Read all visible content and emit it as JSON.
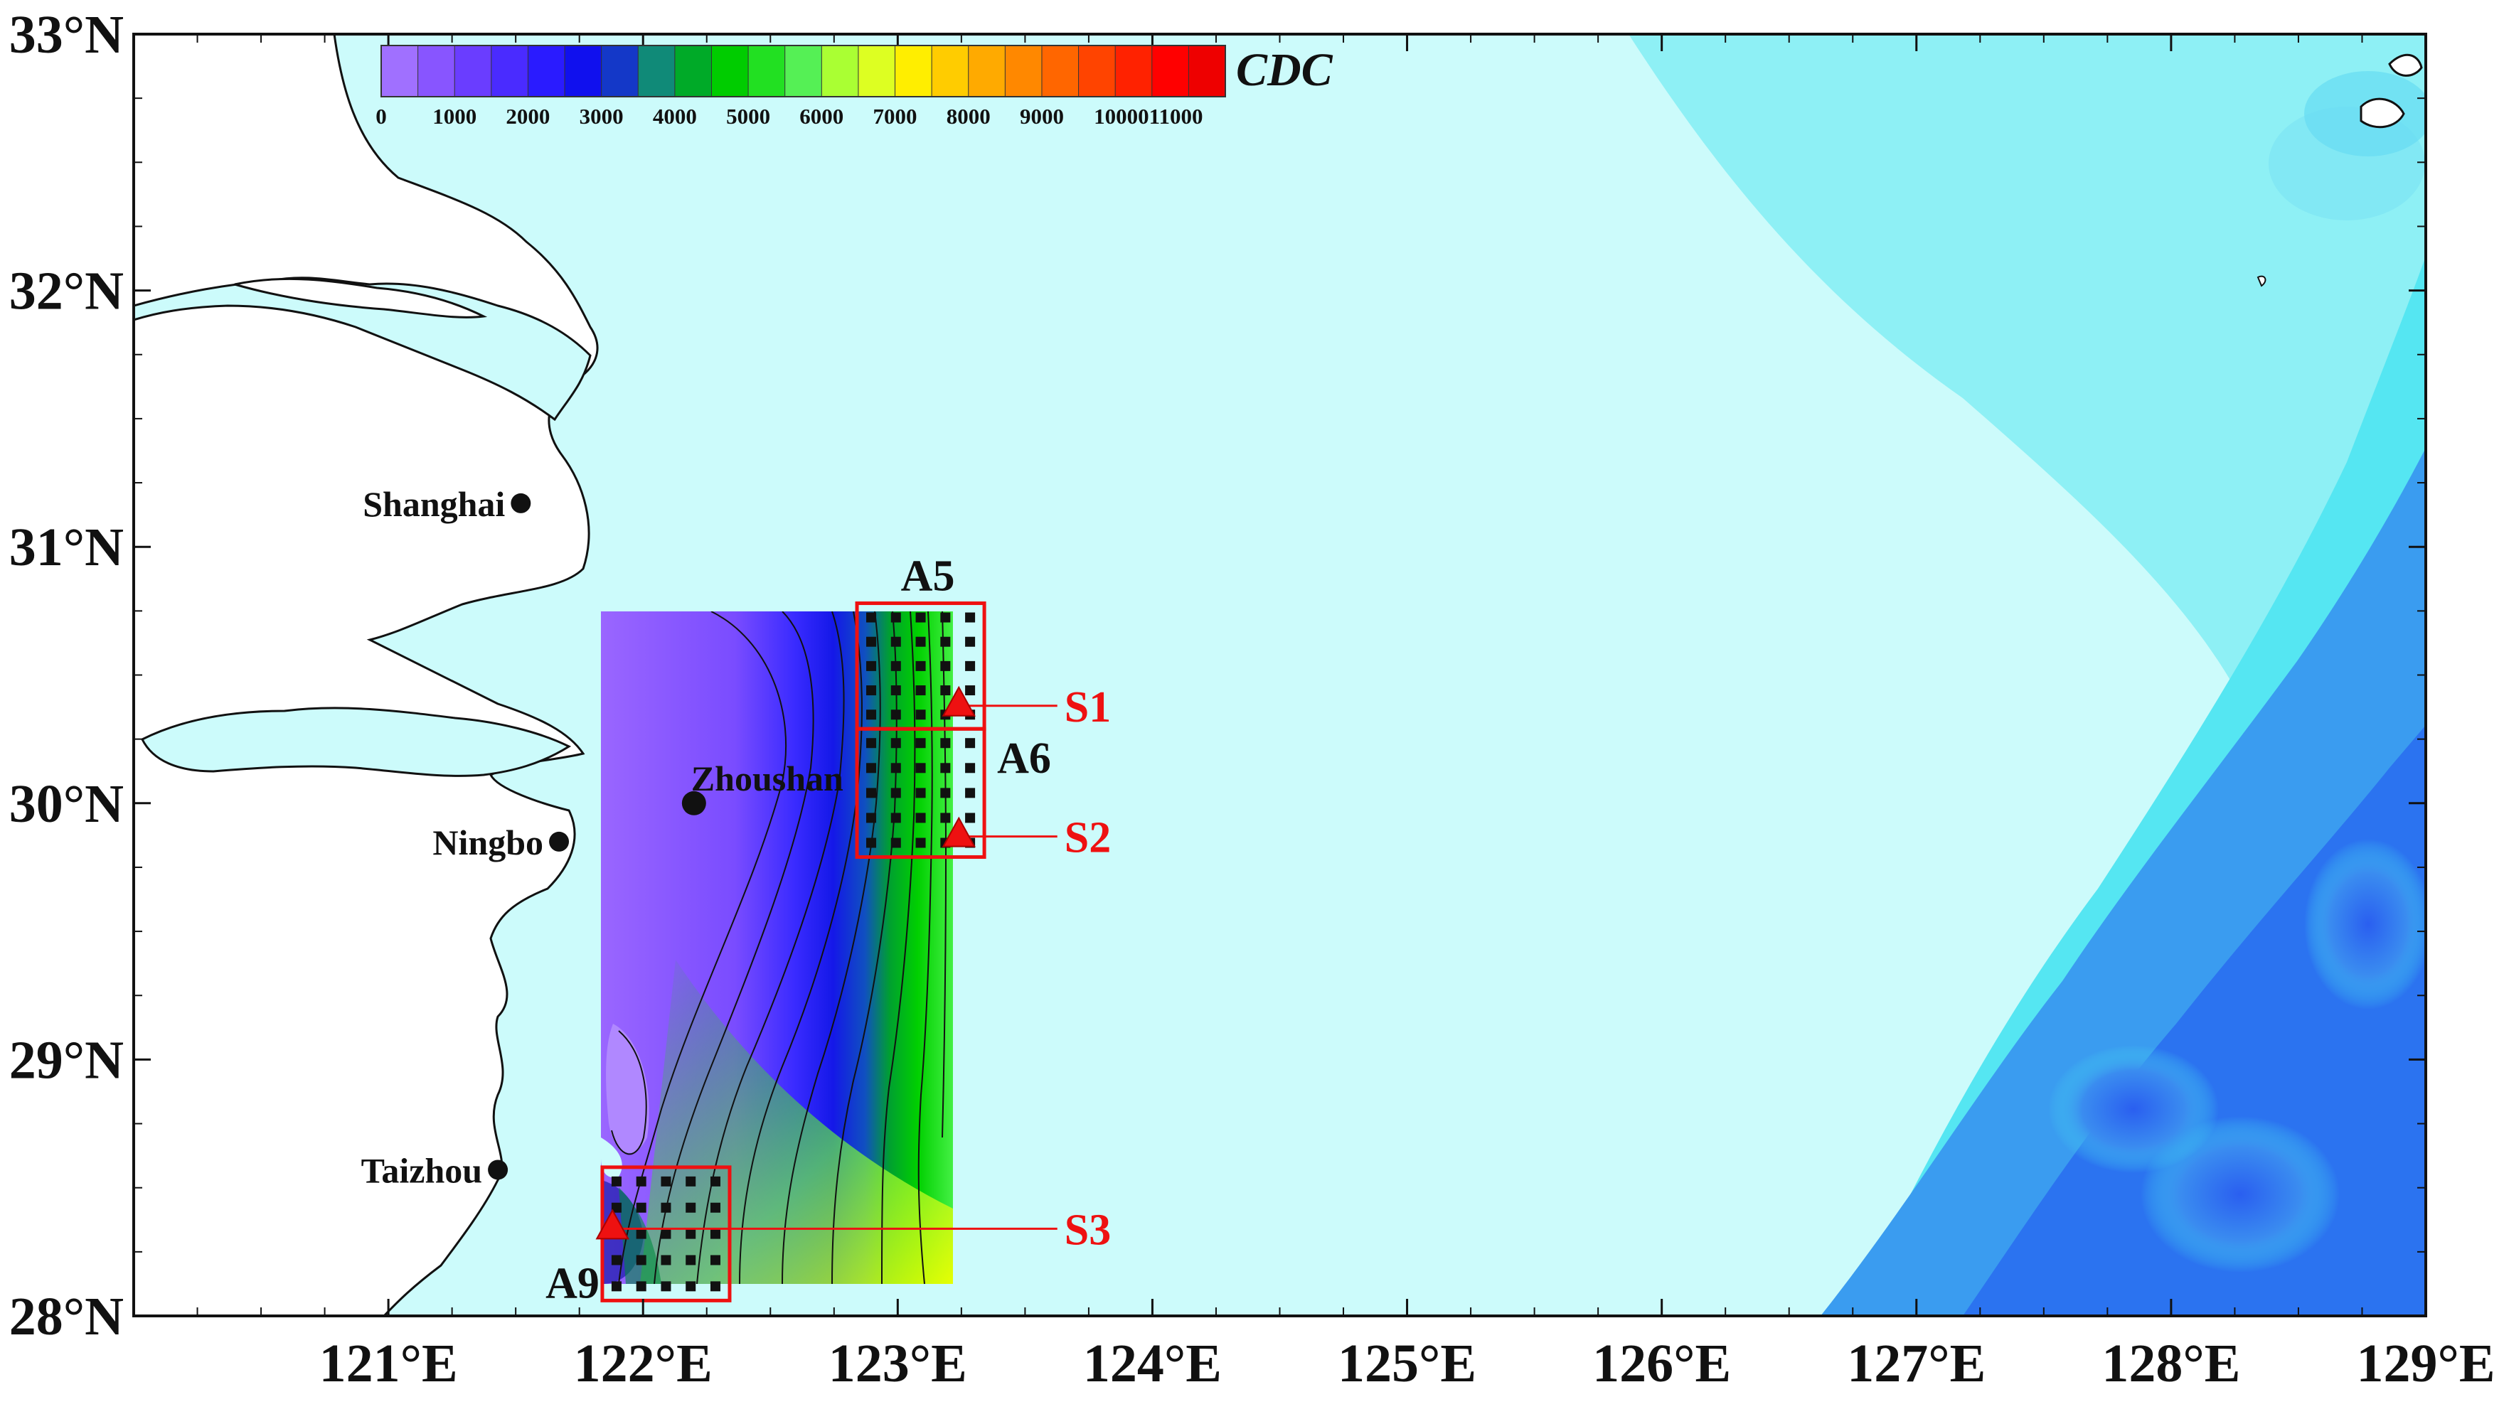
{
  "map": {
    "lon_range": [
      120,
      129
    ],
    "lat_range": [
      28,
      33
    ],
    "lon_ticks": [
      "121°E",
      "122°E",
      "123°E",
      "124°E",
      "125°E",
      "126°E",
      "127°E",
      "128°E",
      "129°E"
    ],
    "lat_ticks": [
      "28°N",
      "29°N",
      "30°N",
      "31°N",
      "32°N",
      "33°N"
    ],
    "colors": {
      "sea_base": "#ccfbfb",
      "sea_mid": "#44dff0",
      "sea_deep": "#2266f0",
      "land": "#ffffff",
      "coastline": "#111111",
      "marker_box": "#ee1111",
      "station": "#ee1111"
    }
  },
  "colorbar": {
    "title": "CDC",
    "tick_labels": [
      "0",
      "1000",
      "2000",
      "3000",
      "4000",
      "5000",
      "6000",
      "7000",
      "8000",
      "9000",
      "1000011000"
    ],
    "colors": [
      "#a070ff",
      "#8855ff",
      "#6a3dff",
      "#4a2bff",
      "#2a1bff",
      "#1010ee",
      "#1438c8",
      "#108a78",
      "#00aa28",
      "#00cc00",
      "#22e022",
      "#55f055",
      "#aaff33",
      "#ddff22",
      "#ffee00",
      "#ffcc00",
      "#ffaa00",
      "#ff8800",
      "#ff6600",
      "#ff4400",
      "#ff2200",
      "#ff0000",
      "#ee0000"
    ]
  },
  "cities": [
    {
      "name": "Shanghai",
      "lon": 121.52,
      "lat": 31.17
    },
    {
      "name": "Zhoushan",
      "lon": 122.2,
      "lat": 30.0
    },
    {
      "name": "Ningbo",
      "lon": 121.67,
      "lat": 29.85
    },
    {
      "name": "Taizhou",
      "lon": 121.43,
      "lat": 28.57
    }
  ],
  "areas": [
    {
      "label": "A5",
      "lon_range": [
        122.84,
        123.34
      ],
      "lat_range": [
        30.29,
        30.78
      ]
    },
    {
      "label": "A6",
      "lon_range": [
        122.84,
        123.34
      ],
      "lat_range": [
        29.79,
        30.29
      ]
    },
    {
      "label": "A9",
      "lon_range": [
        121.84,
        122.34
      ],
      "lat_range": [
        28.06,
        28.58
      ]
    }
  ],
  "stations": [
    {
      "label": "S1",
      "lon": 123.24,
      "lat": 30.38
    },
    {
      "label": "S2",
      "lon": 123.24,
      "lat": 29.87
    },
    {
      "label": "S3",
      "lon": 121.88,
      "lat": 28.34
    }
  ]
}
